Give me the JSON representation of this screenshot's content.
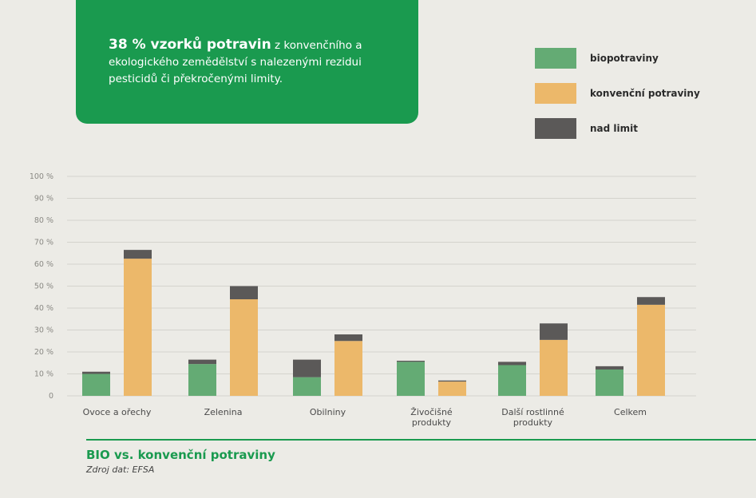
{
  "header": {
    "highlight": "38 % vzorků potravin",
    "text": "z konvenčního a ekologického zemědělství s nalezenými rezidui pesticidů či překročenými limity."
  },
  "legend": [
    {
      "label": "biopotraviny",
      "color": "#64ab74"
    },
    {
      "label": "konvenční potraviny",
      "color": "#ecb86a"
    },
    {
      "label": "nad limit",
      "color": "#5b5958"
    }
  ],
  "chart_data": {
    "type": "bar",
    "stacked": true,
    "categories": [
      [
        "Ovoce a ořechy"
      ],
      [
        "Zelenina"
      ],
      [
        "Obilniny"
      ],
      [
        "Živočišné",
        "produkty"
      ],
      [
        "Další rostlinné",
        "produkty"
      ],
      [
        "Celkem"
      ]
    ],
    "series": [
      {
        "name": "biopotraviny",
        "values": [
          10,
          14.5,
          8.5,
          15.5,
          14,
          12
        ],
        "over_limit": [
          1,
          2,
          8,
          0.5,
          1.5,
          1.5
        ]
      },
      {
        "name": "konvenční potraviny",
        "values": [
          62.5,
          44,
          25,
          6.5,
          25.5,
          41.5
        ],
        "over_limit": [
          4,
          6,
          3,
          0.5,
          7.5,
          3.5
        ]
      }
    ],
    "y_ticks": [
      "0",
      "10 %",
      "20 %",
      "30 %",
      "40 %",
      "50 %",
      "60 %",
      "70 %",
      "80 %",
      "90 %",
      "100 %"
    ],
    "ylim": [
      0,
      100
    ],
    "grid": true,
    "colors": {
      "bio": "#64ab74",
      "conv": "#ecb86a",
      "over": "#5b5958",
      "grid": "#d4d3cd"
    }
  },
  "footer": {
    "title": "BIO vs. konvenční potraviny",
    "source": "Zdroj dat: EFSA"
  }
}
